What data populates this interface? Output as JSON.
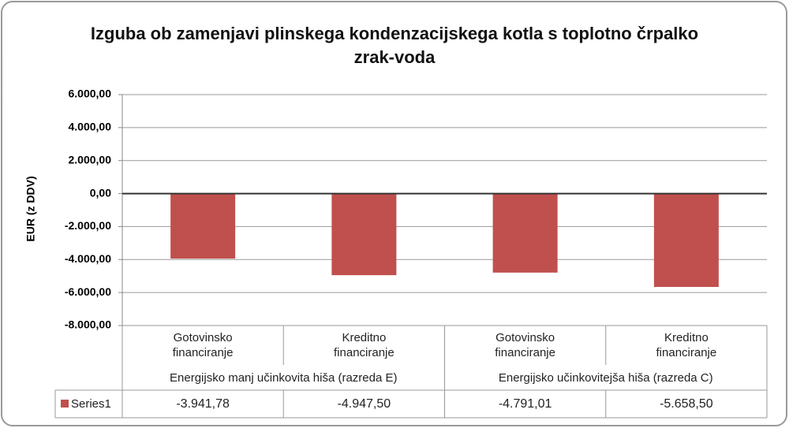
{
  "chart_data": {
    "type": "bar",
    "title": "Izguba ob zamenjavi plinskega kondenzacijskega kotla s toplotno črpalko zrak-voda",
    "y_label": "EUR (z DDV)",
    "groups": [
      {
        "name": "Energijsko manj učinkovita hiša (razreda E)",
        "categories": [
          "Gotovinsko financiranje",
          "Kreditno financiranje"
        ]
      },
      {
        "name": "Energijsko učinkovitejša hiša (razreda C)",
        "categories": [
          "Gotovinsko financiranje",
          "Kreditno financiranje"
        ]
      }
    ],
    "series": [
      {
        "name": "Series1",
        "color": "#c0504d",
        "values": [
          -3941.78,
          -4947.5,
          -4791.01,
          -5658.5
        ],
        "value_labels": [
          "-3.941,78",
          "-4.947,50",
          "-4.791,01",
          "-5.658,50"
        ]
      }
    ],
    "ylim": [
      -8000,
      6000
    ],
    "yticks": [
      {
        "value": -8000,
        "label": "-8.000,00"
      },
      {
        "value": -6000,
        "label": "-6.000,00"
      },
      {
        "value": -4000,
        "label": "-4.000,00"
      },
      {
        "value": -2000,
        "label": "-2.000,00"
      },
      {
        "value": 0,
        "label": "0,00"
      },
      {
        "value": 2000,
        "label": "2.000,00"
      },
      {
        "value": 4000,
        "label": "4.000,00"
      },
      {
        "value": 6000,
        "label": "6.000,00"
      }
    ],
    "grid": true,
    "data_table": true
  }
}
